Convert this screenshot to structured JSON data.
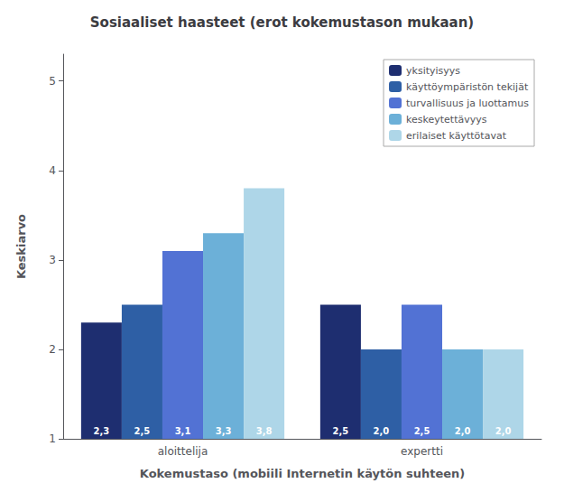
{
  "chart_data": {
    "type": "bar",
    "title": "Sosiaaliset haasteet (erot kokemustason mukaan)",
    "xlabel": "Kokemustaso (mobiili Internetin käytön suhteen)",
    "ylabel": "Keskiarvo",
    "categories": [
      "aloittelija",
      "expertti"
    ],
    "series": [
      {
        "name": "yksityisyys",
        "color": "#1e2e70",
        "values": [
          2.3,
          2.5
        ],
        "value_labels": [
          "2,3",
          "2,5"
        ]
      },
      {
        "name": "käyttöympäristön tekijät",
        "color": "#2e5fa5",
        "values": [
          2.5,
          2.0
        ],
        "value_labels": [
          "2,5",
          "2,0"
        ]
      },
      {
        "name": "turvallisuus ja luottamus",
        "color": "#5272d4",
        "values": [
          3.1,
          2.5
        ],
        "value_labels": [
          "3,1",
          "2,5"
        ]
      },
      {
        "name": "keskeytettävyys",
        "color": "#6cb0d8",
        "values": [
          3.3,
          2.0
        ],
        "value_labels": [
          "3,3",
          "2,0"
        ]
      },
      {
        "name": "erilaiset käyttötavat",
        "color": "#aed6e8",
        "values": [
          3.8,
          2.0
        ],
        "value_labels": [
          "3,8",
          "2,0"
        ]
      }
    ],
    "ylim": [
      1,
      5.3
    ],
    "yticks": [
      1,
      2,
      3,
      4,
      5
    ],
    "grid": false,
    "legend": "upper right",
    "data_labels": true
  }
}
